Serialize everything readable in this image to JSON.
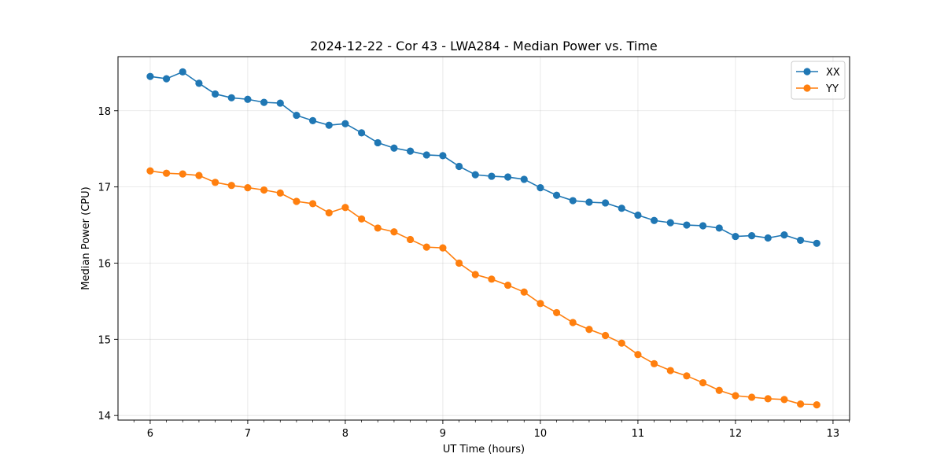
{
  "chart_data": {
    "type": "line",
    "title": "2024-12-22 - Cor 43 - LWA284 - Median Power vs. Time",
    "xlabel": "UT Time (hours)",
    "ylabel": "Median Power (CPU)",
    "xlim": [
      5.67,
      13.17
    ],
    "ylim": [
      13.94,
      18.71
    ],
    "xticks": [
      6,
      7,
      8,
      9,
      10,
      11,
      12,
      13
    ],
    "yticks": [
      14,
      15,
      16,
      17,
      18
    ],
    "grid": true,
    "legend_position": "top-right",
    "x": [
      6.0,
      6.1667,
      6.3333,
      6.5,
      6.6667,
      6.8333,
      7.0,
      7.1667,
      7.3333,
      7.5,
      7.6667,
      7.8333,
      8.0,
      8.1667,
      8.3333,
      8.5,
      8.6667,
      8.8333,
      9.0,
      9.1667,
      9.3333,
      9.5,
      9.6667,
      9.8333,
      10.0,
      10.1667,
      10.3333,
      10.5,
      10.6667,
      10.8333,
      11.0,
      11.1667,
      11.3333,
      11.5,
      11.6667,
      11.8333,
      12.0,
      12.1667,
      12.3333,
      12.5,
      12.6667,
      12.8333
    ],
    "series": [
      {
        "name": "XX",
        "color": "#1f77b4",
        "values": [
          18.45,
          18.42,
          18.51,
          18.36,
          18.22,
          18.17,
          18.15,
          18.11,
          18.1,
          17.94,
          17.87,
          17.81,
          17.83,
          17.71,
          17.58,
          17.51,
          17.47,
          17.42,
          17.41,
          17.27,
          17.16,
          17.14,
          17.13,
          17.1,
          16.99,
          16.89,
          16.82,
          16.8,
          16.79,
          16.72,
          16.63,
          16.56,
          16.53,
          16.5,
          16.49,
          16.46,
          16.35,
          16.36,
          16.33,
          16.37,
          16.3,
          16.26
        ]
      },
      {
        "name": "YY",
        "color": "#ff7f0e",
        "values": [
          17.21,
          17.18,
          17.17,
          17.15,
          17.06,
          17.02,
          16.99,
          16.96,
          16.92,
          16.81,
          16.78,
          16.66,
          16.73,
          16.58,
          16.46,
          16.41,
          16.31,
          16.21,
          16.2,
          16.0,
          15.85,
          15.79,
          15.71,
          15.62,
          15.47,
          15.35,
          15.22,
          15.13,
          15.05,
          14.95,
          14.8,
          14.68,
          14.59,
          14.52,
          14.43,
          14.33,
          14.26,
          14.24,
          14.22,
          14.21,
          14.15,
          14.14
        ]
      }
    ]
  }
}
